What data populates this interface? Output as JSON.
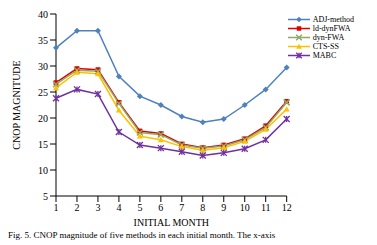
{
  "chart_data": {
    "type": "line",
    "x_label": "INITIAL MONTH",
    "y_label": "CNOP MAGNITUDE",
    "caption": "Fig. 5. CNOP magnitude of five methods in each initial month. The x-axis",
    "categories": [
      "1",
      "2",
      "3",
      "4",
      "5",
      "6",
      "7",
      "8",
      "9",
      "10",
      "11",
      "12"
    ],
    "ylim": [
      5,
      40
    ],
    "yticks": [
      5,
      10,
      15,
      20,
      25,
      30,
      35,
      40
    ],
    "grid": false,
    "legend": "upper right",
    "series": [
      {
        "name": "ADJ-method",
        "color": "#4f81bd",
        "marker": "diamond",
        "values": [
          33.5,
          36.8,
          36.8,
          28,
          24.2,
          22.5,
          20.3,
          19.2,
          19.8,
          22.5,
          25.5,
          29.7
        ]
      },
      {
        "name": "ld-dynFWA",
        "color": "#e00000",
        "marker": "square",
        "values": [
          26.8,
          29.5,
          29.3,
          23,
          17.5,
          17,
          15,
          14.3,
          14.8,
          16,
          18.5,
          23.2
        ]
      },
      {
        "name": "dyn-FWA",
        "color": "#8faa64",
        "marker": "x",
        "values": [
          26.5,
          29.2,
          29,
          22.8,
          17.2,
          16.8,
          14.8,
          14.2,
          14.6,
          15.8,
          18.2,
          23
        ]
      },
      {
        "name": "CTS-SS",
        "color": "#ffc000",
        "marker": "triangle",
        "values": [
          25.8,
          28.8,
          28.5,
          21.5,
          16.5,
          15.8,
          14.5,
          13.8,
          14.3,
          15.5,
          17.8,
          21.7
        ]
      },
      {
        "name": "MABC",
        "color": "#7030a0",
        "marker": "star",
        "values": [
          23.8,
          25.5,
          24.6,
          17.3,
          14.8,
          14.2,
          13.5,
          12.8,
          13.3,
          14.1,
          15.8,
          19.8
        ]
      }
    ]
  }
}
